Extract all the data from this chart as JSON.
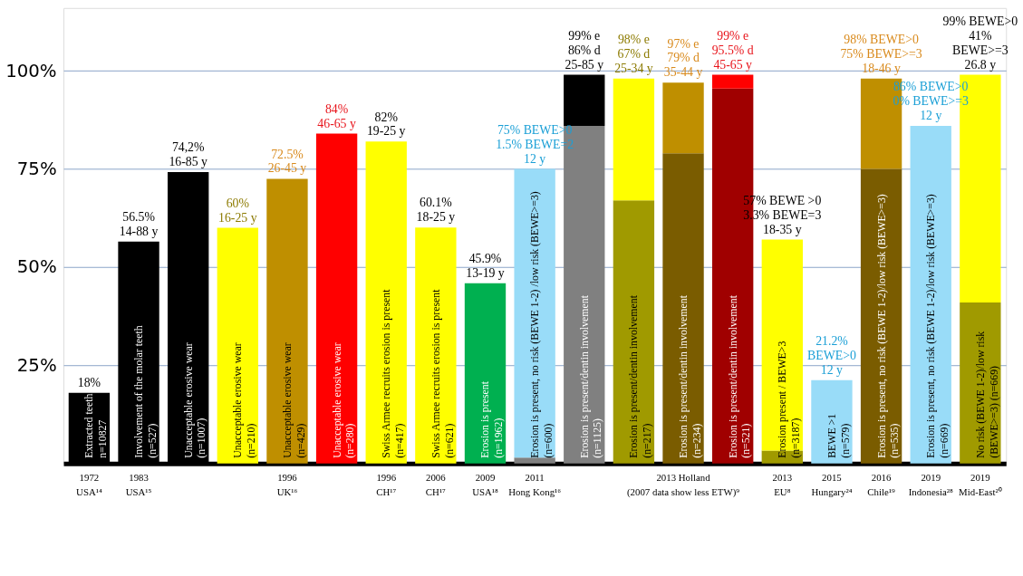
{
  "chart_data": {
    "type": "bar",
    "stacked": true,
    "grid": "y",
    "categories": [
      "1972\nUSA¹⁴",
      "1983\nUSA¹⁵",
      null,
      null,
      "1996\nUK¹⁶",
      null,
      "1996\nCH¹⁷",
      "2006\nCH¹⁷",
      "2009\nUSA¹⁸",
      "2011\nHong Kong¹⁶",
      null,
      null,
      "2013 Holland\n(2007 data show less ETW)⁹",
      null,
      "2013\nEU⁸",
      "2015\nHungary²⁴",
      "2016\nChile¹⁹",
      "2019\nIndonesia²⁸",
      "2019\nMid-East²⁰"
    ],
    "series": [
      {
        "values": [
          18,
          56.5,
          74.2,
          60,
          72.5,
          84,
          82,
          60.1,
          45.9,
          1.5,
          86,
          67,
          79,
          95.5,
          3.3,
          21.2,
          75,
          86,
          41
        ],
        "colors": [
          "#000000",
          "#000000",
          "#000000",
          "#ffff00",
          "#bf8f00",
          "#ff0000",
          "#ffff00",
          "#ffff00",
          "#00b050",
          "#808080",
          "#808080",
          "#a09a00",
          "#7a5c00",
          "#a00000",
          "#a09a00",
          "#99dcf8",
          "#7a5c00",
          "#99dcf8",
          "#a09a00"
        ]
      },
      {
        "values": [
          null,
          null,
          null,
          null,
          null,
          null,
          null,
          null,
          null,
          73.5,
          13,
          31,
          18,
          3.5,
          53.7,
          null,
          23,
          null,
          58
        ],
        "colors": [
          null,
          null,
          null,
          null,
          null,
          null,
          null,
          null,
          null,
          "#99dcf8",
          "#000000",
          "#ffff00",
          "#bf8f00",
          "#ff0000",
          "#ffff00",
          null,
          "#bf8f00",
          null,
          "#ffff00"
        ]
      }
    ],
    "value_labels": [
      "18%",
      "56.5%\n14-88 y",
      "74,2%\n16-85 y",
      "60%\n16-25 y",
      "72.5%\n26-45 y",
      "84%\n46-65 y",
      "82%\n19-25 y",
      "60.1%\n18-25 y",
      "45.9%\n13-19 y",
      "75% BEWE>0\n1.5%  BEWE=2\n12 y",
      "99% e\n86% d\n25-85 y",
      "98% e\n67% d\n25-34 y",
      "97% e\n79% d\n35-44 y",
      "99% e\n95.5% d\n45-65 y",
      "57% BEWE >0\n3.3% BEWE=3\n18-35 y",
      "21.2%\nBEWE>0\n12 y",
      "98% BEWE>0\n75%  BEWE>=3\n18-46 y",
      "86% BEWE>0\n0%  BEWE>=3\n12 y",
      "99% BEWE>0\n41%\nBEWE>=3\n26.8 y"
    ],
    "annotations": [
      "Extracted teeth\nn=10827",
      "Involvement of the molar teeth\n(n=527)",
      "Unacceptable  erosive wear\n(n=1007)",
      "Unacceptable  erosive wear\n(n=210)",
      "Unacceptable  erosive wear\n(n=429)",
      "Unacceptable  erosive wear\n(n=280)",
      "Swiss Armee recruits erosion is present\n(n=417)",
      "Swiss Armee recruits erosion is present\n(n=621)",
      "Erosion is present\n(n=1962)",
      "Erosion is present, no risk (BEWE 1-2) /low risk (BEWE>=3)\n(n=600)",
      "Erosion is present/dentin involvement\n(n=1125)",
      "Erosion is present/dentin involvement\n(n=217)",
      "Erosion is present/dentin involvement\n(n=234)",
      "Erosion is present/dentin involvement\n(n=521)",
      "Erosion present / BEWE>3\n(n=3187)",
      "BEWE >1\n(n=579)",
      "Erosion is present, no risk (BEWE 1-2)/low risk (BEWE>=3)\n(n=535)",
      "Erosion is present, no risk (BEWE 1-2)/low risk (BEWE>=3)\n(n=669)",
      "No risk (BEWE 1-2)/low risk\n(BEWE>=3) (n=669)"
    ],
    "ylim": [
      0,
      116
    ],
    "yticks": [
      {
        "value": 25,
        "label": "25%"
      },
      {
        "value": 50,
        "label": "50%"
      },
      {
        "value": 75,
        "label": "75%"
      },
      {
        "value": 100,
        "label": "100%"
      }
    ]
  }
}
